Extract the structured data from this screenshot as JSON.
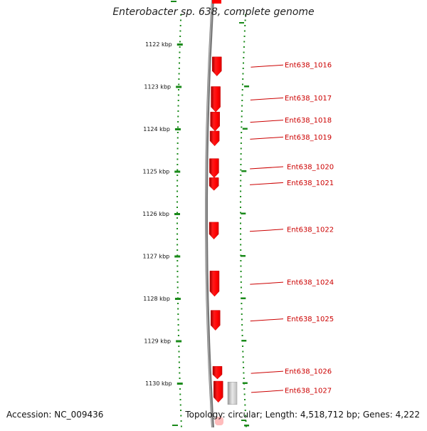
{
  "title": "Enterobacter sp. 638, complete genome",
  "footer": {
    "accession": "Accession: NC_009436",
    "summary": "Topology: circular; Length: 4,518,712 bp; Genes: 4,222"
  },
  "colors": {
    "gene": "#ff0000",
    "gene_dark": "#c80000",
    "tick": "#1a8a1a",
    "label": "#cc0000",
    "backbone": "#777777",
    "other_feature": "#cccccc"
  },
  "scale": {
    "unit": "kbp",
    "labels": [
      "1122 kbp",
      "1123 kbp",
      "1124 kbp",
      "1125 kbp",
      "1126 kbp",
      "1127 kbp",
      "1128 kbp",
      "1129 kbp",
      "1130 kbp"
    ]
  },
  "genes": [
    {
      "name": "Ent638_1016",
      "start_kbp": 1122.3,
      "end_kbp": 1122.75
    },
    {
      "name": "Ent638_1017",
      "start_kbp": 1123.0,
      "end_kbp": 1123.6
    },
    {
      "name": "Ent638_1018",
      "start_kbp": 1123.6,
      "end_kbp": 1124.05
    },
    {
      "name": "Ent638_1019",
      "start_kbp": 1124.05,
      "end_kbp": 1124.4
    },
    {
      "name": "Ent638_1020",
      "start_kbp": 1124.7,
      "end_kbp": 1125.15
    },
    {
      "name": "Ent638_1021",
      "start_kbp": 1125.15,
      "end_kbp": 1125.45
    },
    {
      "name": "Ent638_1022",
      "start_kbp": 1126.2,
      "end_kbp": 1126.6
    },
    {
      "name": "Ent638_1024",
      "start_kbp": 1127.35,
      "end_kbp": 1127.95
    },
    {
      "name": "Ent638_1025",
      "start_kbp": 1128.28,
      "end_kbp": 1128.75
    },
    {
      "name": "Ent638_1026",
      "start_kbp": 1129.6,
      "end_kbp": 1129.9
    },
    {
      "name": "Ent638_1027",
      "start_kbp": 1129.95,
      "end_kbp": 1130.45
    }
  ],
  "other_features": [
    {
      "type": "grey",
      "start_kbp": 1129.97,
      "end_kbp": 1130.5
    }
  ]
}
